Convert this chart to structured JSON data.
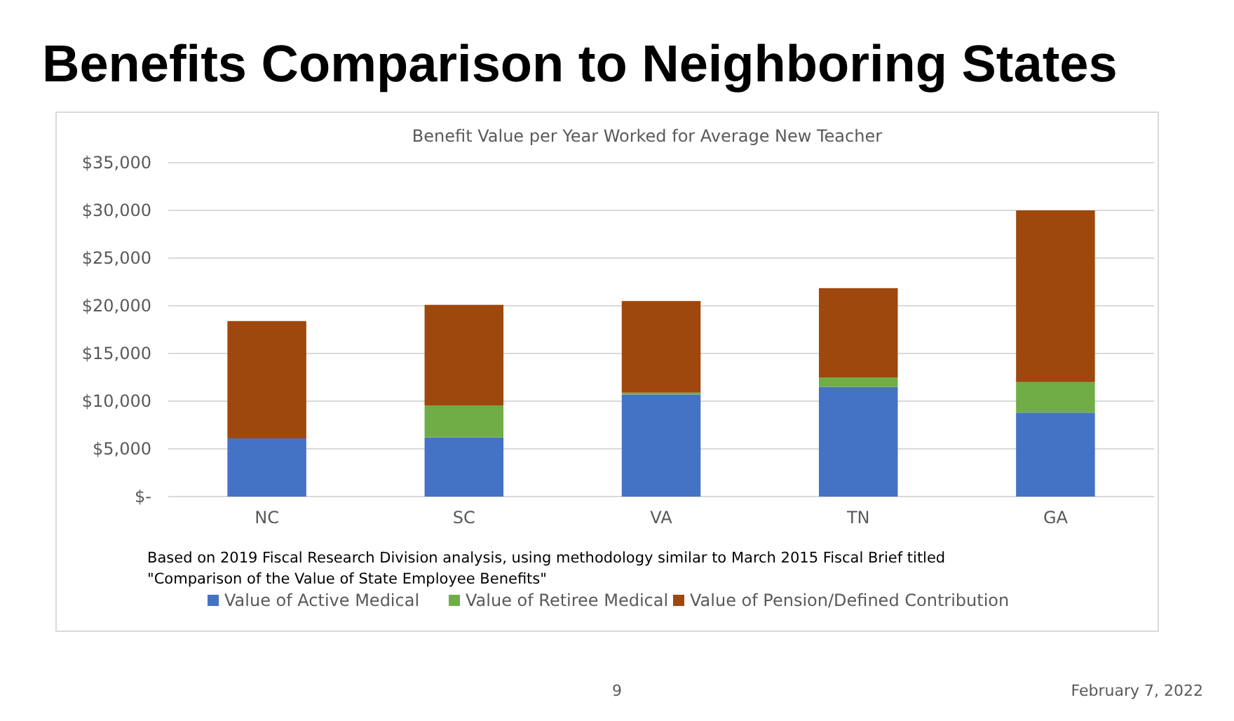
{
  "chart_data": {
    "type": "bar",
    "title": "Benefits Comparison to Neighboring States",
    "subtitle": "Benefit Value per Year Worked for Average New Teacher",
    "categories": [
      "NC",
      "SC",
      "VA",
      "TN",
      "GA"
    ],
    "series": [
      {
        "name": "Value of Active Medical",
        "color": "#4472c4",
        "values": [
          6100,
          6200,
          10700,
          11500,
          8800
        ]
      },
      {
        "name": "Value of Retiree Medical",
        "color": "#70ad47",
        "values": [
          0,
          3350,
          200,
          1000,
          3200
        ]
      },
      {
        "name": "Value of Pension/Defined Contribution",
        "color": "#9e480e",
        "values": [
          12300,
          10550,
          9600,
          9350,
          18000
        ]
      }
    ],
    "stacked": true,
    "ylim": [
      0,
      35000
    ],
    "yticks": [
      {
        "value": 0,
        "label": "$-"
      },
      {
        "value": 5000,
        "label": "$5,000"
      },
      {
        "value": 10000,
        "label": "$10,000"
      },
      {
        "value": 15000,
        "label": "$15,000"
      },
      {
        "value": 20000,
        "label": "$20,000"
      },
      {
        "value": 25000,
        "label": "$25,000"
      },
      {
        "value": 30000,
        "label": "$30,000"
      },
      {
        "value": 35000,
        "label": "$35,000"
      }
    ],
    "grid": "y",
    "legend": "bottom",
    "annotations": [
      "Based on 2019 Fiscal Research Division analysis, using methodology similar to March 2015 Fiscal Brief titled \"Comparison of the Value of State Employee Benefits\"",
      "9",
      "February 7, 2022"
    ]
  }
}
